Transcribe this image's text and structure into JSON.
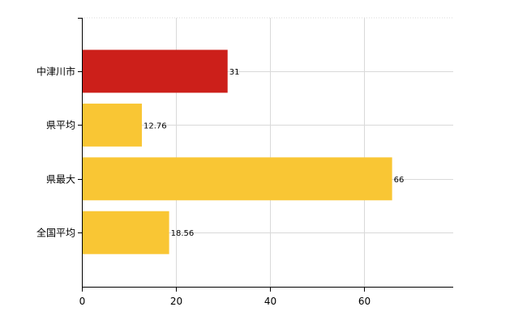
{
  "chart_data": {
    "type": "bar",
    "orientation": "horizontal",
    "categories": [
      "中津川市",
      "県平均",
      "県最大",
      "全国平均"
    ],
    "values": [
      31,
      12.76,
      66,
      18.56
    ],
    "value_labels": [
      "31",
      "12.76",
      "66",
      "18.56"
    ],
    "bar_colors": [
      "#cc1f1a",
      "#f9c634",
      "#f9c634",
      "#f9c634"
    ],
    "xlim": [
      0,
      79
    ],
    "x_ticks": [
      0,
      20,
      40,
      60
    ],
    "x_tick_labels": [
      "0",
      "20",
      "40",
      "60"
    ],
    "grid": true,
    "grid_color": "#d9d9d9",
    "axis_color": "#000000",
    "legend": "none"
  }
}
